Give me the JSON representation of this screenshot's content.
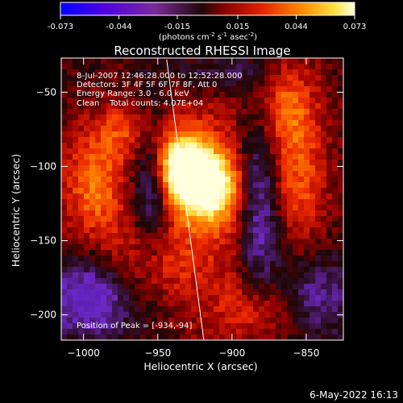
{
  "colorbar": {
    "tick_labels": [
      "-0.073",
      "-0.044",
      "-0.015",
      "0.015",
      "0.044",
      "0.073"
    ],
    "range": [
      -0.073,
      0.073
    ],
    "units_text": "(photons cm",
    "units_sup1": "-2",
    "units_mid": " s",
    "units_sup2": "-1",
    "units_end": " asec",
    "units_sup3": "-2",
    "units_close": ")"
  },
  "chart_data": {
    "type": "heatmap",
    "title": "Reconstructed RHESSI Image",
    "xlabel": "Heliocentric X (arcsec)",
    "ylabel": "Heliocentric Y (arcsec)",
    "xlim": [
      -1015,
      -825
    ],
    "ylim": [
      -217,
      -27
    ],
    "x_ticks": [
      -1000,
      -950,
      -900,
      -850
    ],
    "x_tick_labels": [
      "−1000",
      "−950",
      "−900",
      "−850"
    ],
    "y_ticks": [
      -50,
      -100,
      -150,
      -200
    ],
    "y_tick_labels": [
      "−50",
      "−100",
      "−150",
      "−200"
    ],
    "colorscale": [
      "#0000ff",
      "#6a00c8",
      "#4a1866",
      "#1a0505",
      "#b40000",
      "#ff4000",
      "#ff9a00",
      "#ffff80",
      "#ffffff"
    ],
    "peak": {
      "x": -934,
      "y": -94
    },
    "limb_line": {
      "x1": -944,
      "y1": -28,
      "x2": -919,
      "y2": -217
    },
    "annotations": [
      "8-Jul-2007 12:46:28.000 to 12:52:28.000",
      "Detectors: 3F 4F 5F 6F 7F 8F, Att 0",
      "Energy Range: 3.0 - 6.0 keV",
      "Clean    Total counts: 4.07E+04"
    ],
    "peak_label": "Position of Peak = [-934,-94]"
  },
  "footer": {
    "date_text": "6-May-2022 16:13"
  }
}
